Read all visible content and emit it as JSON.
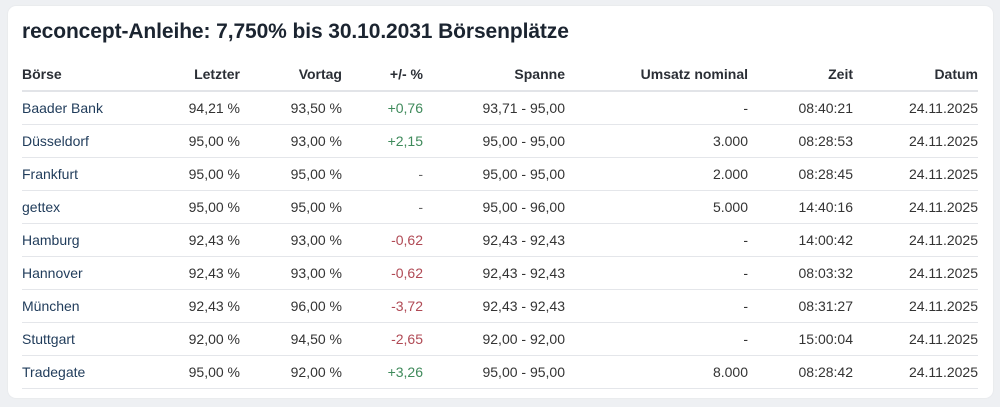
{
  "title": "reconcept-Anleihe: 7,750% bis 30.10.2031 Börsenplätze",
  "colors": {
    "positive": "#3f8a5b",
    "negative": "#b04a55",
    "link": "#1f3b5a"
  },
  "table": {
    "headers": [
      "Börse",
      "Letzter",
      "Vortag",
      "+/- %",
      "Spanne",
      "Umsatz nominal",
      "Zeit",
      "Datum"
    ],
    "rows": [
      {
        "boerse": "Baader Bank",
        "letzter": "94,21 %",
        "vortag": "93,50 %",
        "change": "+0,76",
        "trend": "pos",
        "spanne": "93,71 - 95,00",
        "umsatz": "-",
        "zeit": "08:40:21",
        "datum": "24.11.2025"
      },
      {
        "boerse": "Düsseldorf",
        "letzter": "95,00 %",
        "vortag": "93,00 %",
        "change": "+2,15",
        "trend": "pos",
        "spanne": "95,00 - 95,00",
        "umsatz": "3.000",
        "zeit": "08:28:53",
        "datum": "24.11.2025"
      },
      {
        "boerse": "Frankfurt",
        "letzter": "95,00 %",
        "vortag": "95,00 %",
        "change": "-",
        "trend": "neu",
        "spanne": "95,00 - 95,00",
        "umsatz": "2.000",
        "zeit": "08:28:45",
        "datum": "24.11.2025"
      },
      {
        "boerse": "gettex",
        "letzter": "95,00 %",
        "vortag": "95,00 %",
        "change": "-",
        "trend": "neu",
        "spanne": "95,00 - 96,00",
        "umsatz": "5.000",
        "zeit": "14:40:16",
        "datum": "24.11.2025"
      },
      {
        "boerse": "Hamburg",
        "letzter": "92,43 %",
        "vortag": "93,00 %",
        "change": "-0,62",
        "trend": "neg",
        "spanne": "92,43 - 92,43",
        "umsatz": "-",
        "zeit": "14:00:42",
        "datum": "24.11.2025"
      },
      {
        "boerse": "Hannover",
        "letzter": "92,43 %",
        "vortag": "93,00 %",
        "change": "-0,62",
        "trend": "neg",
        "spanne": "92,43 - 92,43",
        "umsatz": "-",
        "zeit": "08:03:32",
        "datum": "24.11.2025"
      },
      {
        "boerse": "München",
        "letzter": "92,43 %",
        "vortag": "96,00 %",
        "change": "-3,72",
        "trend": "neg",
        "spanne": "92,43 - 92,43",
        "umsatz": "-",
        "zeit": "08:31:27",
        "datum": "24.11.2025"
      },
      {
        "boerse": "Stuttgart",
        "letzter": "92,00 %",
        "vortag": "94,50 %",
        "change": "-2,65",
        "trend": "neg",
        "spanne": "92,00 - 92,00",
        "umsatz": "-",
        "zeit": "15:00:04",
        "datum": "24.11.2025"
      },
      {
        "boerse": "Tradegate",
        "letzter": "95,00 %",
        "vortag": "92,00 %",
        "change": "+3,26",
        "trend": "pos",
        "spanne": "95,00 - 95,00",
        "umsatz": "8.000",
        "zeit": "08:28:42",
        "datum": "24.11.2025"
      }
    ]
  }
}
